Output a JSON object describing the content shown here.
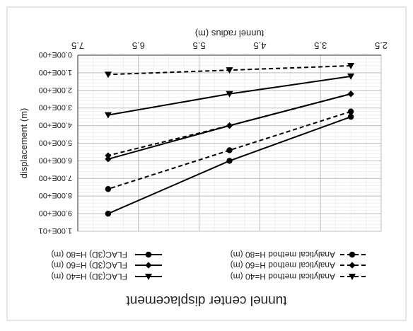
{
  "chart_data": {
    "type": "line",
    "orientation": "rotated-180",
    "title": "tunnel center displacement",
    "xlabel": "tunnel radius (m)",
    "ylabel": "displacement (m)",
    "xlim": [
      2.5,
      7.5
    ],
    "ylim": [
      0,
      10
    ],
    "xticks": [
      "2.5",
      "3.5",
      "4.5",
      "5.5",
      "6.5",
      "7.5"
    ],
    "yticks": [
      "0.00E+00",
      "1.00E+00",
      "2.00E+00",
      "3.00E+00",
      "4.00E+00",
      "5.00E+00",
      "6.00E+00",
      "7.00E+00",
      "8.00E+00",
      "9.00E+00",
      "1.00E+01"
    ],
    "grid": true,
    "legend_position": "below plot",
    "series": [
      {
        "name": "FLAC(3D) H=80 (m)",
        "style": "solid",
        "marker": "circle",
        "x": [
          3,
          5,
          7
        ],
        "y": [
          3.5,
          6.0,
          9.0
        ]
      },
      {
        "name": "FLAC(3D) H=60 (m)",
        "style": "solid",
        "marker": "diamond",
        "x": [
          3,
          5,
          7
        ],
        "y": [
          2.2,
          4.0,
          5.9
        ]
      },
      {
        "name": "FLAC(3D) H=40 (m)",
        "style": "solid",
        "marker": "triangle",
        "x": [
          3,
          5,
          7
        ],
        "y": [
          1.2,
          2.2,
          3.4
        ]
      },
      {
        "name": "Analytical method H=80 (m)",
        "style": "dashed",
        "marker": "circle",
        "x": [
          3,
          5,
          7
        ],
        "y": [
          3.2,
          5.4,
          7.6
        ]
      },
      {
        "name": "Analytical method H=60 (m)",
        "style": "dashed",
        "marker": "diamond",
        "x": [
          3,
          5,
          7
        ],
        "y": [
          2.2,
          4.0,
          5.7
        ]
      },
      {
        "name": "Analytical method H=40 (m)",
        "style": "dashed",
        "marker": "triangle",
        "x": [
          3,
          5,
          7
        ],
        "y": [
          0.6,
          0.85,
          1.1
        ]
      }
    ]
  }
}
